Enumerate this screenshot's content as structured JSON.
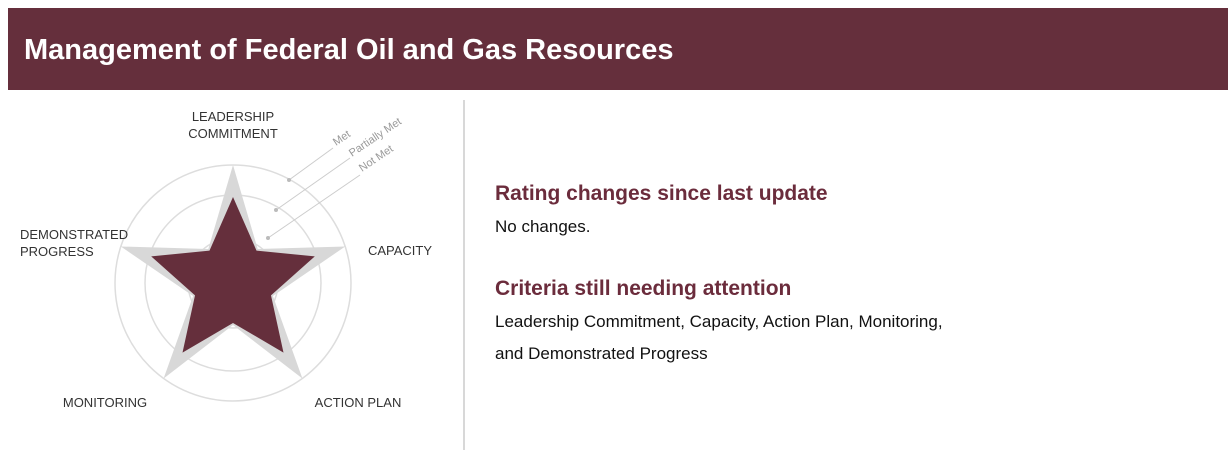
{
  "header": {
    "title": "Management of Federal Oil and Gas Resources"
  },
  "diagram": {
    "criteria": [
      {
        "lines": [
          "LEADERSHIP",
          "COMMITMENT"
        ]
      },
      {
        "lines": [
          "CAPACITY"
        ]
      },
      {
        "lines": [
          "ACTION PLAN"
        ]
      },
      {
        "lines": [
          "MONITORING"
        ]
      },
      {
        "lines": [
          "DEMONSTRATED",
          "PROGRESS"
        ]
      }
    ],
    "rings": [
      "Met",
      "Partially Met",
      "Not Met"
    ]
  },
  "sections": [
    {
      "heading": "Rating changes since last update",
      "lines": [
        "No changes."
      ]
    },
    {
      "heading": "Criteria still needing attention",
      "lines": [
        "Leadership Commitment, Capacity, Action Plan, Monitoring,",
        "and Demonstrated Progress"
      ]
    }
  ]
}
